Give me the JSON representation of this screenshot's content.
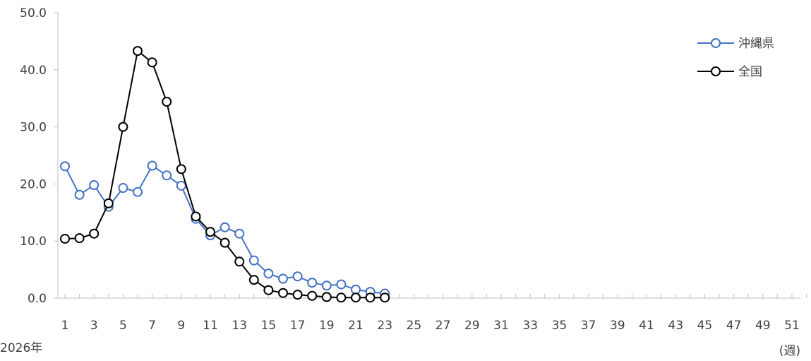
{
  "chart_data": {
    "type": "line",
    "title": "",
    "xlabel": "(週)",
    "ylabel": "",
    "year_label": "2026年",
    "xlim": [
      1,
      52
    ],
    "ylim": [
      0,
      50
    ],
    "x_tick_labels": [
      1,
      3,
      5,
      7,
      9,
      11,
      13,
      15,
      17,
      19,
      21,
      23,
      25,
      27,
      29,
      31,
      33,
      35,
      37,
      39,
      41,
      43,
      45,
      47,
      49,
      51
    ],
    "y_ticks": [
      0,
      10,
      20,
      30,
      40,
      50
    ],
    "y_tick_labels": [
      "0.0",
      "10.0",
      "20.0",
      "30.0",
      "40.0",
      "50.0"
    ],
    "grid": false,
    "legend_position": "top-right",
    "series": [
      {
        "name": "沖縄県",
        "color": "#4472c4",
        "x": [
          1,
          2,
          3,
          4,
          5,
          6,
          7,
          8,
          9,
          10,
          11,
          12,
          13,
          14,
          15,
          16,
          17,
          18,
          19,
          20,
          21,
          22,
          23
        ],
        "values": [
          23.1,
          18.1,
          19.8,
          16.0,
          19.3,
          18.6,
          23.2,
          21.5,
          19.7,
          13.9,
          11.0,
          12.4,
          11.3,
          6.6,
          4.3,
          3.4,
          3.8,
          2.7,
          2.2,
          2.4,
          1.5,
          1.1,
          0.8
        ]
      },
      {
        "name": "全国",
        "color": "#000000",
        "x": [
          1,
          2,
          3,
          4,
          5,
          6,
          7,
          8,
          9,
          10,
          11,
          12,
          13,
          14,
          15,
          16,
          17,
          18,
          19,
          20,
          21,
          22,
          23
        ],
        "values": [
          10.4,
          10.5,
          11.3,
          16.6,
          30.0,
          43.3,
          41.3,
          34.4,
          22.6,
          14.3,
          11.6,
          9.7,
          6.4,
          3.2,
          1.4,
          0.9,
          0.6,
          0.4,
          0.2,
          0.1,
          0.1,
          0.1,
          0.1
        ]
      }
    ]
  }
}
